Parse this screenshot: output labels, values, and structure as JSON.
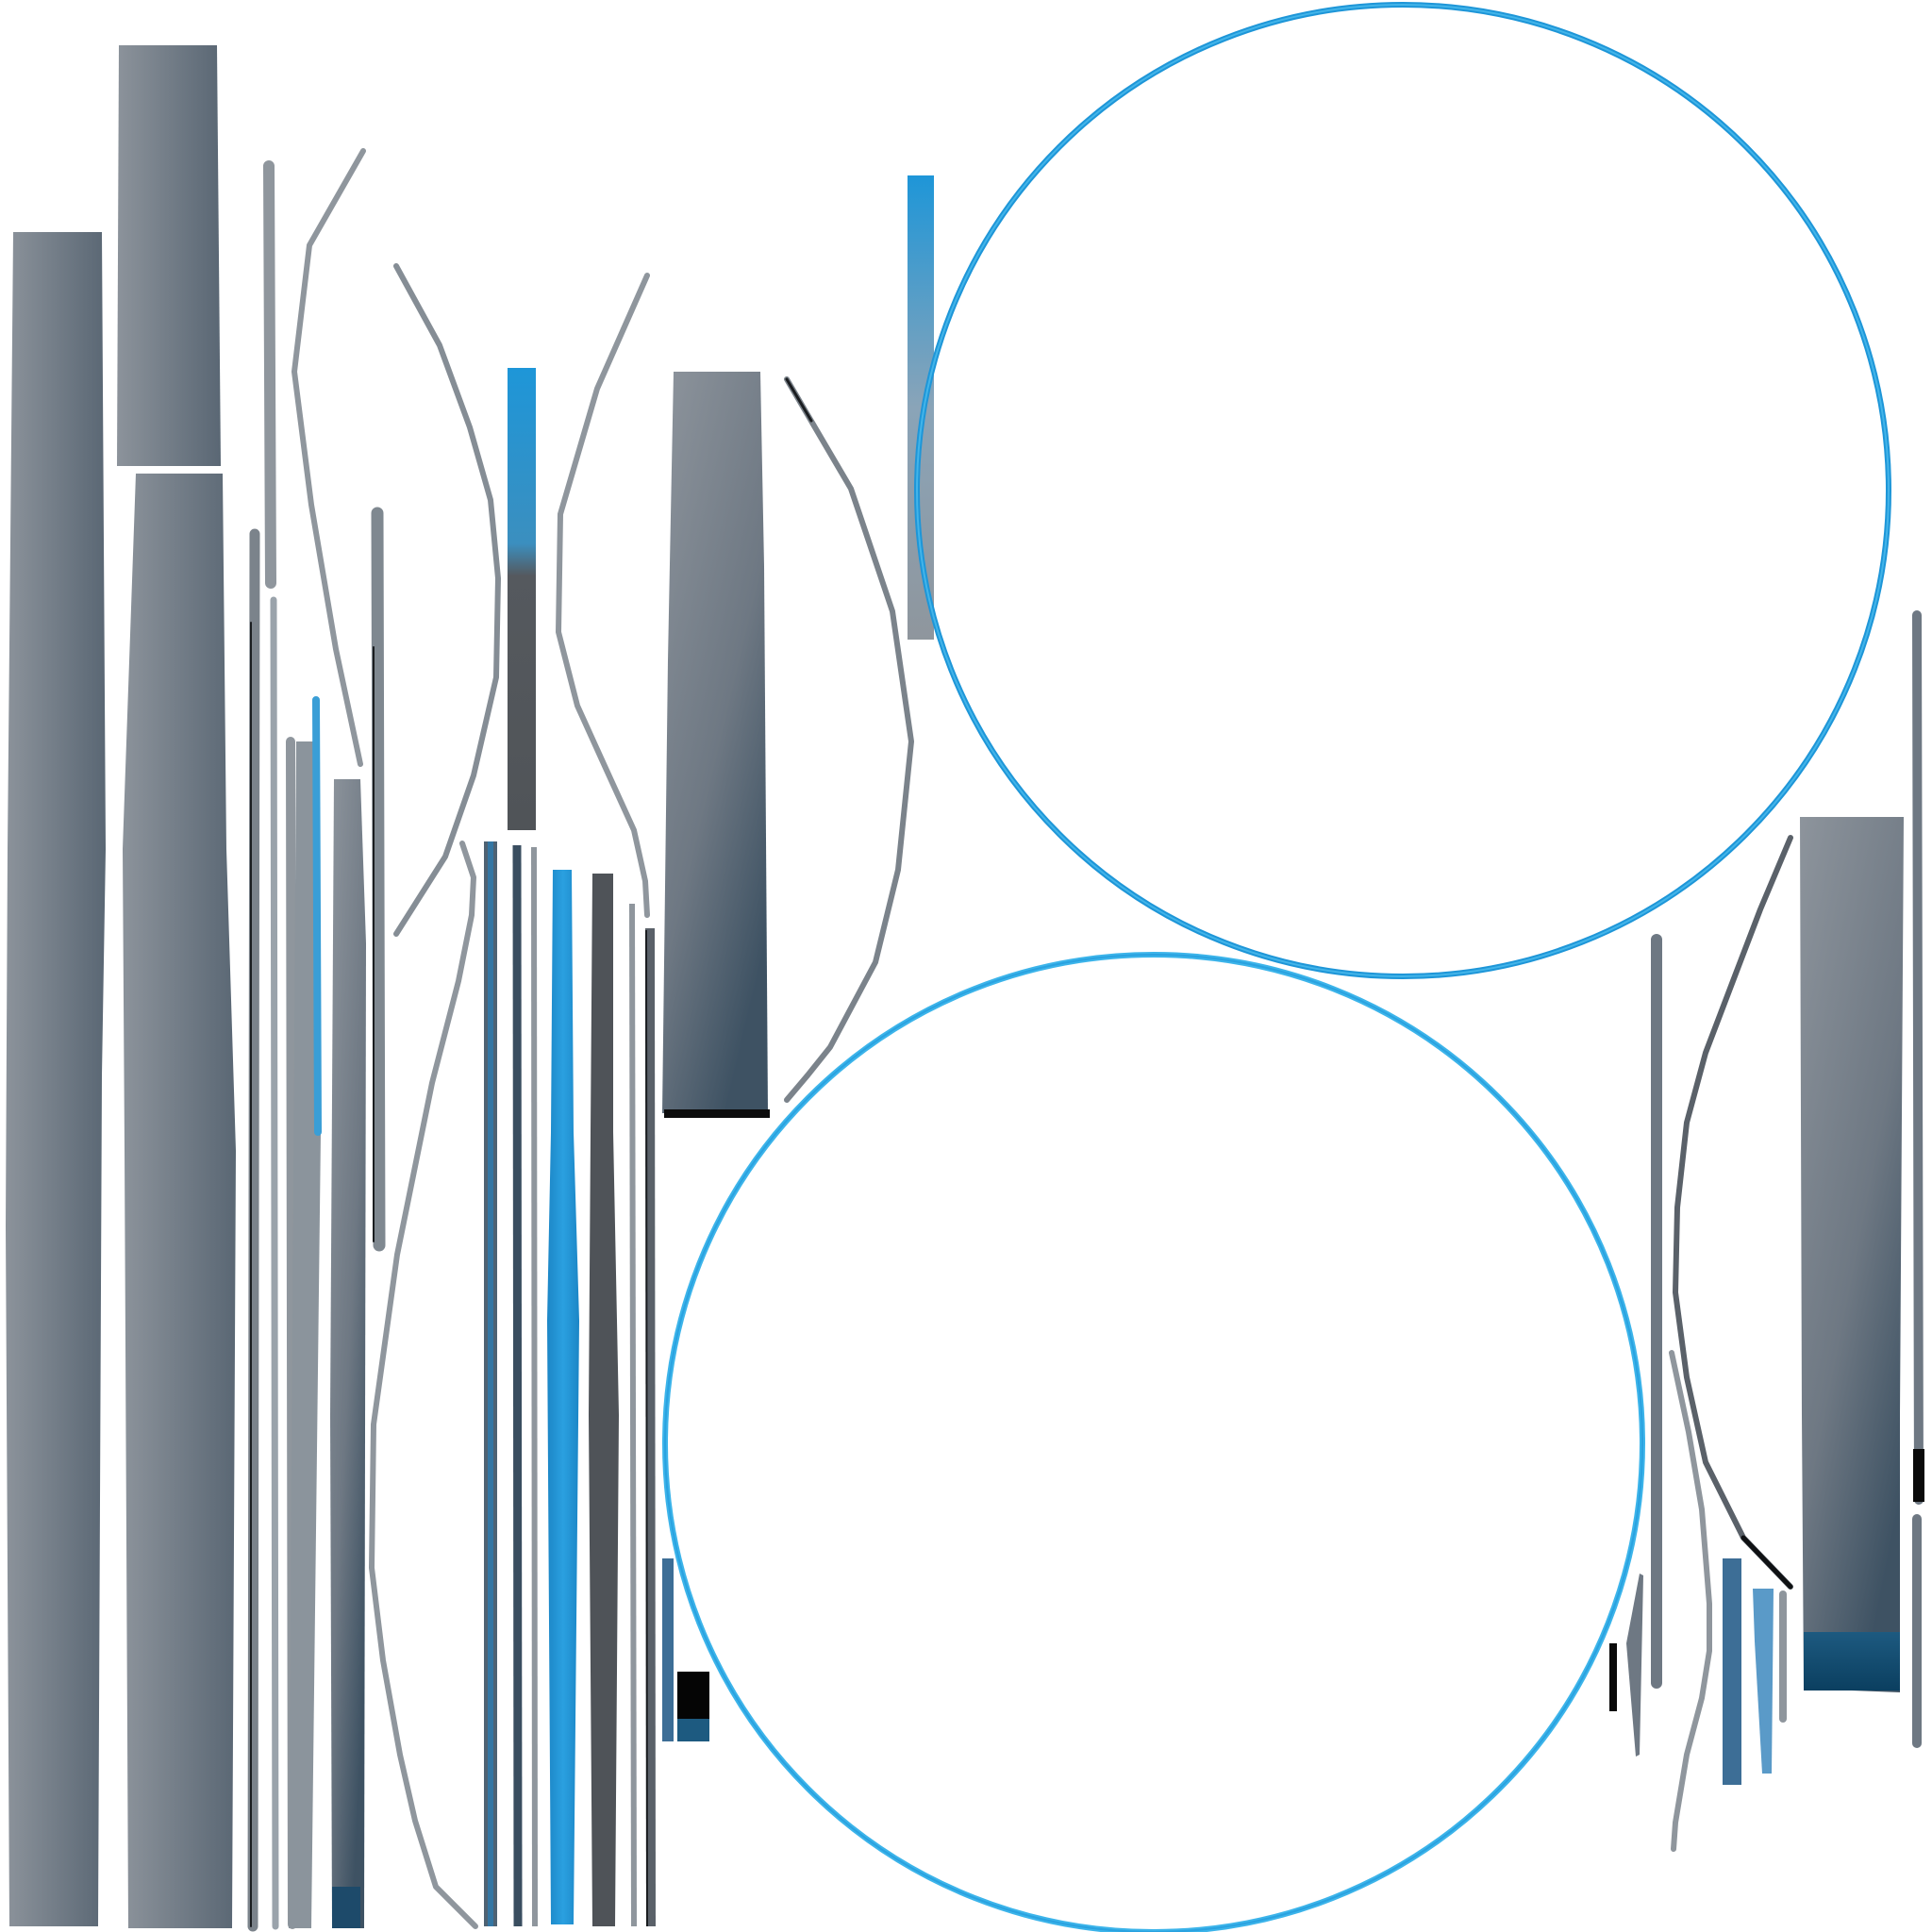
{
  "texture_atlas": {
    "colors": {
      "background": "#ffffff",
      "steel_light": "#8d949c",
      "steel_mid": "#6e7883",
      "steel_dark": "#4d5863",
      "rod_gray": "#8f969d",
      "rod_dark": "#54585d",
      "accent_blue": "#1e96d8",
      "accent_blue_light": "#3cb4ea",
      "accent_blue_deep": "#1c6fa8",
      "black": "#0a0a0a"
    },
    "icons": [
      "steel-plank-icon",
      "blue-rod-icon",
      "curved-strip-icon",
      "blue-ring-icon",
      "small-fragment-icon"
    ]
  }
}
